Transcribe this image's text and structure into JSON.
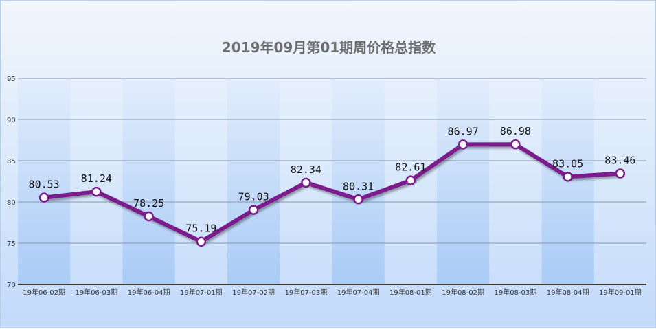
{
  "chart_data": {
    "type": "line",
    "title": "2019年09月第01期周价格总指数",
    "categories": [
      "19年06-02期",
      "19年06-03期",
      "19年06-04期",
      "19年07-01期",
      "19年07-02期",
      "19年07-03期",
      "19年07-04期",
      "19年08-01期",
      "19年08-02期",
      "19年08-03期",
      "19年08-04期",
      "19年09-01期"
    ],
    "series": [
      {
        "values": [
          80.53,
          81.24,
          78.25,
          75.19,
          79.03,
          82.34,
          80.31,
          82.61,
          86.97,
          86.98,
          83.05,
          83.46
        ]
      }
    ],
    "data_labels": [
      "80.53",
      "81.24",
      "78.25",
      "75.19",
      "79.03",
      "82.34",
      "80.31",
      "82.61",
      "86.97",
      "86.98",
      "83.05",
      "83.46"
    ],
    "ylim": [
      70,
      95
    ],
    "yticks": [
      "70",
      "75",
      "80",
      "85",
      "90",
      "95"
    ],
    "grid": true,
    "legend": "none",
    "colors": {
      "line": "#7b1c8c",
      "marker_fill": "#ffffff",
      "grid": "#8a96b0",
      "band": "#b7d3f7"
    }
  }
}
